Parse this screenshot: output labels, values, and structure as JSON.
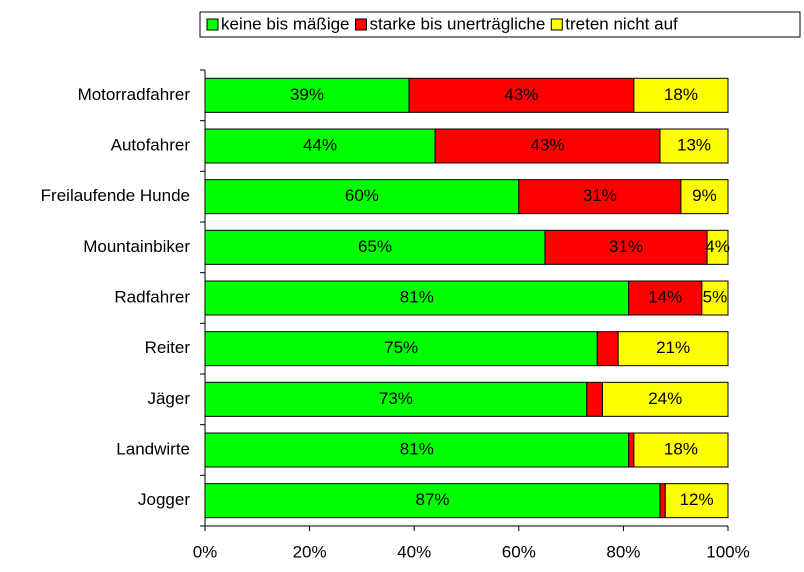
{
  "chart_data": {
    "type": "stacked_barh",
    "categories": [
      "Motorradfahrer",
      "Autofahrer",
      "Freilaufende Hunde",
      "Mountainbiker",
      "Radfahrer",
      "Reiter",
      "Jäger",
      "Landwirte",
      "Jogger"
    ],
    "series": [
      {
        "name": "keine bis mäßige",
        "color": "#00ff00",
        "values": [
          39,
          44,
          60,
          65,
          81,
          75,
          73,
          81,
          87
        ],
        "value_labels": [
          "39%",
          "44%",
          "60%",
          "65%",
          "81%",
          "75%",
          "73%",
          "81%",
          "87%"
        ]
      },
      {
        "name": "starke bis unerträgliche",
        "color": "#ff0000",
        "values": [
          43,
          43,
          31,
          31,
          14,
          4,
          3,
          1,
          1
        ],
        "value_labels": [
          "43%",
          "43%",
          "31%",
          "31%",
          "14%",
          null,
          null,
          null,
          null
        ]
      },
      {
        "name": "treten nicht auf",
        "color": "#ffff00",
        "values": [
          18,
          13,
          9,
          4,
          5,
          21,
          24,
          18,
          12
        ],
        "value_labels": [
          "18%",
          "13%",
          "9%",
          "4%",
          "5%",
          "21%",
          "24%",
          "18%",
          "12%"
        ]
      }
    ],
    "xlim": [
      0,
      100
    ],
    "xticks": [
      {
        "value": 0,
        "label": "0%"
      },
      {
        "value": 20,
        "label": "20%"
      },
      {
        "value": 40,
        "label": "40%"
      },
      {
        "value": 60,
        "label": "60%"
      },
      {
        "value": 80,
        "label": "80%"
      },
      {
        "value": 100,
        "label": "100%"
      }
    ],
    "legend": "top"
  }
}
